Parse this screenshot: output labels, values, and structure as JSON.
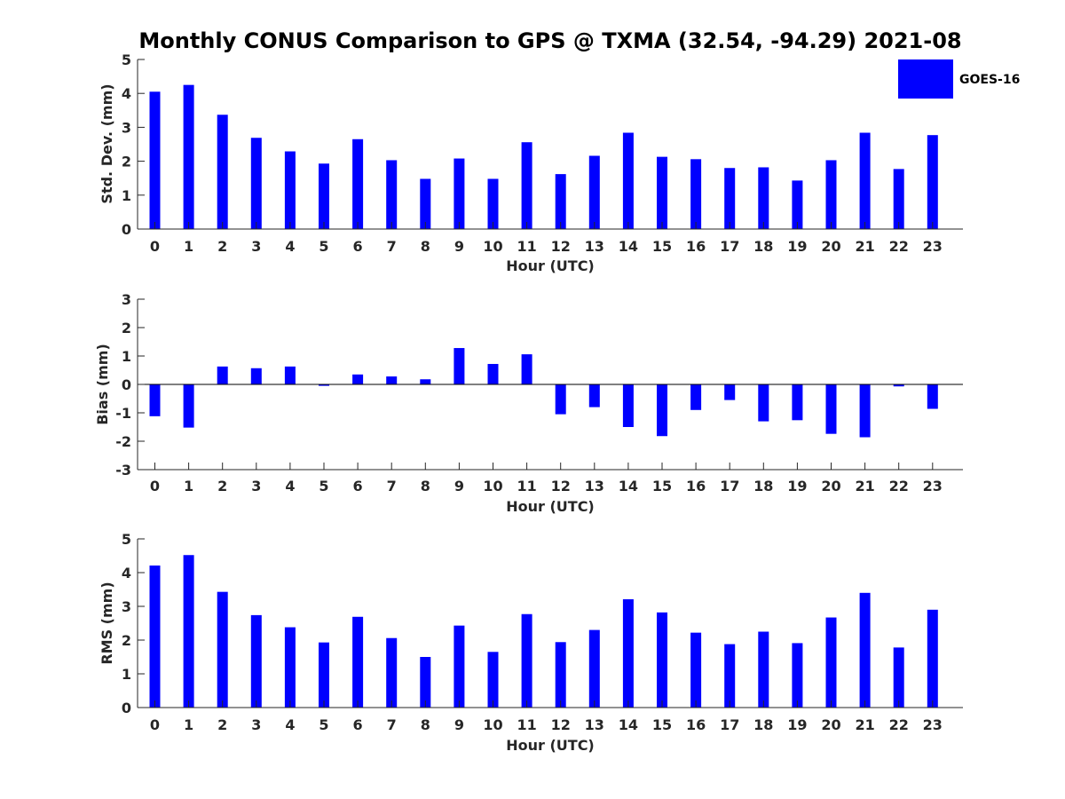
{
  "title": "Monthly CONUS Comparison to GPS @ TXMA (32.54, -94.29) 2021-08",
  "legend": {
    "label": "GOES-16",
    "color": "#0000ff",
    "placement": "top-right"
  },
  "colors": {
    "bar": "#0000ff",
    "axis": "#262626"
  },
  "chart_data": [
    {
      "type": "bar",
      "categories": [
        "0",
        "1",
        "2",
        "3",
        "4",
        "5",
        "6",
        "7",
        "8",
        "9",
        "10",
        "11",
        "12",
        "13",
        "14",
        "15",
        "16",
        "17",
        "18",
        "19",
        "20",
        "21",
        "22",
        "23"
      ],
      "series": [
        {
          "name": "GOES-16",
          "values": [
            4.05,
            4.25,
            3.37,
            2.69,
            2.29,
            1.93,
            2.65,
            2.03,
            1.48,
            2.08,
            1.48,
            2.56,
            1.62,
            2.16,
            2.84,
            2.13,
            2.06,
            1.8,
            1.82,
            1.43,
            2.03,
            2.84,
            1.77,
            2.77
          ]
        }
      ],
      "xlabel": "Hour (UTC)",
      "ylabel": "Std. Dev. (mm)",
      "ylim": [
        0,
        5
      ],
      "yticks": [
        0,
        1,
        2,
        3,
        4,
        5
      ]
    },
    {
      "type": "bar",
      "categories": [
        "0",
        "1",
        "2",
        "3",
        "4",
        "5",
        "6",
        "7",
        "8",
        "9",
        "10",
        "11",
        "12",
        "13",
        "14",
        "15",
        "16",
        "17",
        "18",
        "19",
        "20",
        "21",
        "22",
        "23"
      ],
      "series": [
        {
          "name": "GOES-16",
          "values": [
            -1.12,
            -1.52,
            0.63,
            0.57,
            0.63,
            -0.05,
            0.35,
            0.28,
            0.18,
            1.28,
            0.72,
            1.06,
            -1.05,
            -0.8,
            -1.5,
            -1.82,
            -0.9,
            -0.55,
            -1.3,
            -1.26,
            -1.74,
            -1.86,
            -0.07,
            -0.86
          ]
        }
      ],
      "xlabel": "Hour (UTC)",
      "ylabel": "Bias (mm)",
      "ylim": [
        -3,
        3
      ],
      "yticks": [
        -3,
        -2,
        -1,
        0,
        1,
        2,
        3
      ]
    },
    {
      "type": "bar",
      "categories": [
        "0",
        "1",
        "2",
        "3",
        "4",
        "5",
        "6",
        "7",
        "8",
        "9",
        "10",
        "11",
        "12",
        "13",
        "14",
        "15",
        "16",
        "17",
        "18",
        "19",
        "20",
        "21",
        "22",
        "23"
      ],
      "series": [
        {
          "name": "GOES-16",
          "values": [
            4.21,
            4.52,
            3.43,
            2.74,
            2.38,
            1.93,
            2.69,
            2.06,
            1.5,
            2.43,
            1.65,
            2.77,
            1.94,
            2.3,
            3.21,
            2.82,
            2.22,
            1.88,
            2.25,
            1.91,
            2.67,
            3.4,
            1.78,
            2.9
          ]
        }
      ],
      "xlabel": "Hour (UTC)",
      "ylabel": "RMS (mm)",
      "ylim": [
        0,
        5
      ],
      "yticks": [
        0,
        1,
        2,
        3,
        4,
        5
      ]
    }
  ]
}
